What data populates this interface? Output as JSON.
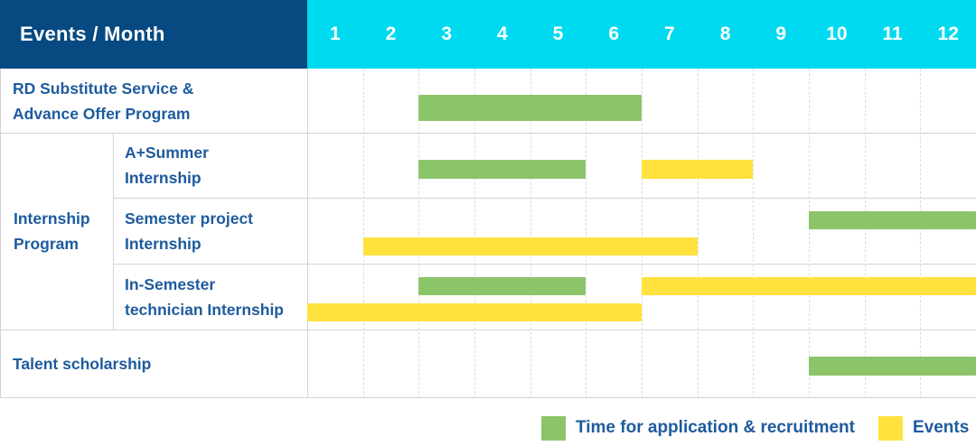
{
  "title": "Events / Month gantt schedule",
  "colors": {
    "navy": "#064a81",
    "cyan": "#00daf0",
    "green": "#8cc46a",
    "yellow": "#ffe23e",
    "label_blue": "#1e5b9e"
  },
  "header": {
    "title": "Events / Month",
    "months": [
      "1",
      "2",
      "3",
      "4",
      "5",
      "6",
      "7",
      "8",
      "9",
      "10",
      "11",
      "12"
    ]
  },
  "display": {
    "rd_lines": [
      "RD Substitute Service &",
      "Advance Offer Program"
    ],
    "group_lines": [
      "Internship",
      "Program"
    ],
    "sub1_lines": [
      "A+Summer",
      "Internship"
    ],
    "sub2_lines": [
      "Semester project",
      "Internship"
    ],
    "sub3_lines": [
      "In-Semester",
      "technician Internship"
    ],
    "talent": "Talent scholarship"
  },
  "legend": {
    "green_label": "Time for application & recruitment",
    "yellow_label": "Events"
  },
  "chart_data": {
    "type": "gantt",
    "title": "Events / Month",
    "x_unit": "month",
    "x_ticks": [
      "1",
      "2",
      "3",
      "4",
      "5",
      "6",
      "7",
      "8",
      "9",
      "10",
      "11",
      "12"
    ],
    "x_range": [
      1,
      12
    ],
    "grid": "dashed-vertical-month-lines",
    "legend": [
      {
        "color": "#8cc46a",
        "label": "Time for application & recruitment",
        "key": "green"
      },
      {
        "color": "#ffe23e",
        "label": "Events",
        "key": "yellow"
      }
    ],
    "rows": [
      {
        "group": null,
        "label": "RD Substitute Service & Advance Offer Program",
        "bars": [
          {
            "type": "green",
            "meaning": "Time for application & recruitment",
            "start_month": 3,
            "end_month": 6,
            "lane": "single"
          }
        ]
      },
      {
        "group": "Internship Program",
        "label": "A+Summer Internship",
        "bars": [
          {
            "type": "green",
            "meaning": "Time for application & recruitment",
            "start_month": 3,
            "end_month": 5,
            "lane": "single"
          },
          {
            "type": "yellow",
            "meaning": "Events",
            "start_month": 7,
            "end_month": 8,
            "lane": "single"
          }
        ]
      },
      {
        "group": "Internship Program",
        "label": "Semester project Internship",
        "bars": [
          {
            "type": "green",
            "meaning": "Time for application & recruitment",
            "start_month": 10,
            "end_month": 12,
            "lane": "upper"
          },
          {
            "type": "yellow",
            "meaning": "Events",
            "start_month": 2,
            "end_month": 7,
            "lane": "lower"
          }
        ]
      },
      {
        "group": "Internship Program",
        "label": "In-Semester technician Internship",
        "bars": [
          {
            "type": "green",
            "meaning": "Time for application & recruitment",
            "start_month": 3,
            "end_month": 5,
            "lane": "upper"
          },
          {
            "type": "yellow",
            "meaning": "Events",
            "start_month": 7,
            "end_month": 12,
            "lane": "upper"
          },
          {
            "type": "yellow",
            "meaning": "Events",
            "start_month": 1,
            "end_month": 6,
            "lane": "lower"
          }
        ]
      },
      {
        "group": null,
        "label": "Talent scholarship",
        "bars": [
          {
            "type": "green",
            "meaning": "Time for application & recruitment",
            "start_month": 10,
            "end_month": 12,
            "lane": "single"
          }
        ]
      }
    ]
  }
}
